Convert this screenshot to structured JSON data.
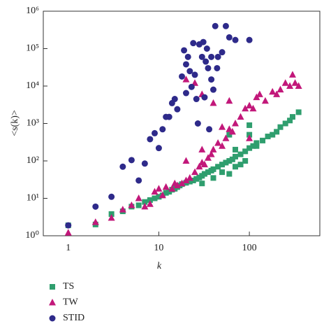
{
  "chart_data": {
    "type": "scatter",
    "x_label": "k",
    "y_label": "<s(k)>",
    "xscale": "log",
    "yscale": "log",
    "xlim": [
      0.53,
      600
    ],
    "ylim": [
      1,
      1000000
    ],
    "xticks": [
      1,
      10,
      100
    ],
    "yticks": [
      {
        "value": 1,
        "label": "10⁰"
      },
      {
        "value": 10,
        "label": "10¹"
      },
      {
        "value": 100,
        "label": "10²"
      },
      {
        "value": 1000,
        "label": "10³"
      },
      {
        "value": 10000,
        "label": "10⁴"
      },
      {
        "value": 100000,
        "label": "10⁵"
      },
      {
        "value": 1000000,
        "label": "10⁶"
      }
    ],
    "legend": "bottom-left",
    "series": [
      {
        "name": "TS",
        "color": "#2f9e6e",
        "marker": "square",
        "x": [
          1,
          2,
          3,
          4,
          5,
          6,
          7,
          8,
          9,
          10,
          11,
          12,
          13,
          14,
          15,
          16,
          17,
          18,
          20,
          22,
          24,
          26,
          28,
          30,
          32,
          35,
          38,
          40,
          45,
          50,
          55,
          60,
          65,
          70,
          80,
          90,
          100,
          110,
          120,
          140,
          160,
          180,
          200,
          220,
          250,
          280,
          300,
          350,
          30,
          40,
          50,
          60,
          70,
          80,
          90,
          100,
          100,
          120,
          70,
          60
        ],
        "values": [
          1.9,
          2,
          3.8,
          4.5,
          6,
          6.5,
          8,
          9,
          10,
          11,
          12,
          14,
          15,
          17,
          18,
          20,
          22,
          24,
          26,
          28,
          30,
          33,
          36,
          40,
          45,
          50,
          55,
          60,
          70,
          80,
          90,
          100,
          110,
          130,
          150,
          180,
          220,
          250,
          300,
          350,
          450,
          500,
          600,
          800,
          1000,
          1200,
          1500,
          2000,
          25,
          35,
          50,
          45,
          70,
          80,
          100,
          500,
          900,
          250,
          200,
          500
        ]
      },
      {
        "name": "TW",
        "color": "#c2187a",
        "marker": "triangle",
        "x": [
          1,
          2,
          3,
          4,
          5,
          6,
          7,
          8,
          9,
          10,
          11,
          12,
          14,
          15,
          16,
          18,
          20,
          22,
          25,
          28,
          30,
          32,
          35,
          38,
          40,
          45,
          50,
          55,
          60,
          65,
          70,
          80,
          90,
          100,
          110,
          120,
          130,
          150,
          180,
          200,
          220,
          250,
          280,
          300,
          320,
          350,
          20,
          30,
          25,
          40,
          60,
          20,
          30,
          50,
          100
        ],
        "values": [
          1.2,
          2.3,
          3,
          5,
          6.5,
          10,
          6,
          7,
          15,
          18,
          12,
          20,
          18,
          25,
          22,
          25,
          30,
          35,
          50,
          70,
          90,
          80,
          120,
          150,
          200,
          300,
          250,
          400,
          700,
          600,
          1000,
          1500,
          2500,
          3000,
          2500,
          5000,
          6000,
          4000,
          7000,
          6000,
          8000,
          12000,
          10000,
          20000,
          12000,
          10000,
          15000,
          6000,
          12000,
          3500,
          4000,
          100,
          200,
          800,
          400
        ]
      },
      {
        "name": "STID",
        "color": "#2e2a8a",
        "marker": "circle",
        "x": [
          1,
          2,
          3,
          4,
          5,
          6,
          7,
          8,
          9,
          10,
          11,
          12,
          13,
          14,
          15,
          16,
          18,
          19,
          20,
          20,
          21,
          22,
          23,
          24,
          25,
          26,
          27,
          28,
          30,
          31,
          32,
          33,
          34,
          35,
          36,
          38,
          40,
          42,
          45,
          50,
          55,
          60,
          70,
          100,
          38,
          44
        ],
        "values": [
          1.9,
          6,
          11,
          70,
          105,
          30,
          85,
          380,
          550,
          220,
          700,
          1500,
          1500,
          3500,
          4500,
          2400,
          18000,
          90000,
          38000,
          6500,
          60000,
          25000,
          9500,
          140000,
          20000,
          4500,
          1000,
          130000,
          60000,
          150000,
          5000,
          45000,
          100000,
          30000,
          700,
          15000,
          8000,
          400000,
          60000,
          80000,
          400000,
          200000,
          170000,
          170000,
          60000,
          30000
        ]
      }
    ]
  }
}
